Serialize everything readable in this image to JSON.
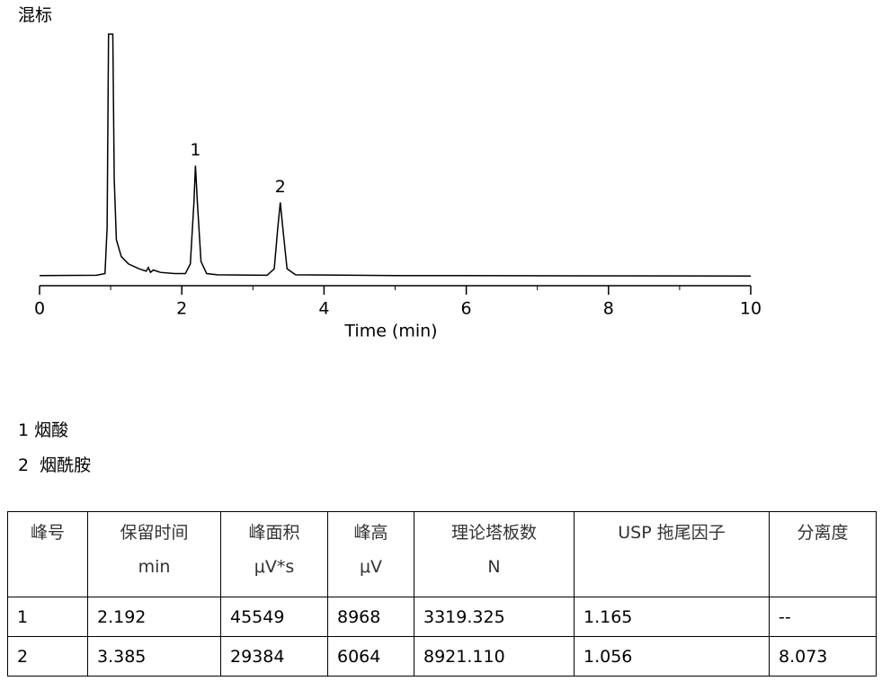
{
  "title": "混标",
  "chart_data": {
    "type": "line",
    "x_label": "Time (min)",
    "xlim": [
      0,
      10
    ],
    "xticks": [
      0,
      2,
      4,
      6,
      8,
      10
    ],
    "xticks_minor": [
      1,
      3,
      5,
      7,
      9
    ],
    "ylim": [
      -4,
      100
    ],
    "x": [
      0,
      0.8,
      0.92,
      0.95,
      0.97,
      1.03,
      1.05,
      1.08,
      1.15,
      1.25,
      1.4,
      1.5,
      1.53,
      1.56,
      1.6,
      1.7,
      1.9,
      2.05,
      2.12,
      2.17,
      2.192,
      2.22,
      2.27,
      2.35,
      2.5,
      3.2,
      3.3,
      3.35,
      3.385,
      3.42,
      3.48,
      3.6,
      5,
      10
    ],
    "series": [
      {
        "color": "#000000",
        "values": [
          0.2,
          0.3,
          1,
          20,
          100,
          100,
          40,
          15,
          8,
          5,
          3,
          2,
          3.5,
          1.5,
          2.5,
          1.5,
          1,
          1,
          5,
          30,
          45.6,
          30,
          6,
          1,
          0.5,
          0.3,
          3,
          20,
          30.4,
          20,
          3,
          0.5,
          0.2,
          0
        ]
      }
    ],
    "annotations": [
      {
        "text": "1",
        "x": 2.192,
        "y": 45.6
      },
      {
        "text": "2",
        "x": 3.385,
        "y": 30.4
      }
    ]
  },
  "legend_items": [
    "1 烟酸",
    "2  烟酰胺"
  ],
  "table": {
    "header": [
      [
        "峰号"
      ],
      [
        "保留时间",
        "min"
      ],
      [
        "峰面积",
        "μV*s"
      ],
      [
        "峰高",
        "μV"
      ],
      [
        "理论塔板数",
        "N"
      ],
      [
        "USP 拖尾因子"
      ],
      [
        "分离度"
      ]
    ],
    "rows": [
      [
        "1",
        "2.192",
        "45549",
        "8968",
        "3319.325",
        "1.165",
        "--"
      ],
      [
        "2",
        "3.385",
        "29384",
        "6064",
        "8921.110",
        "1.056",
        "8.073"
      ]
    ]
  }
}
